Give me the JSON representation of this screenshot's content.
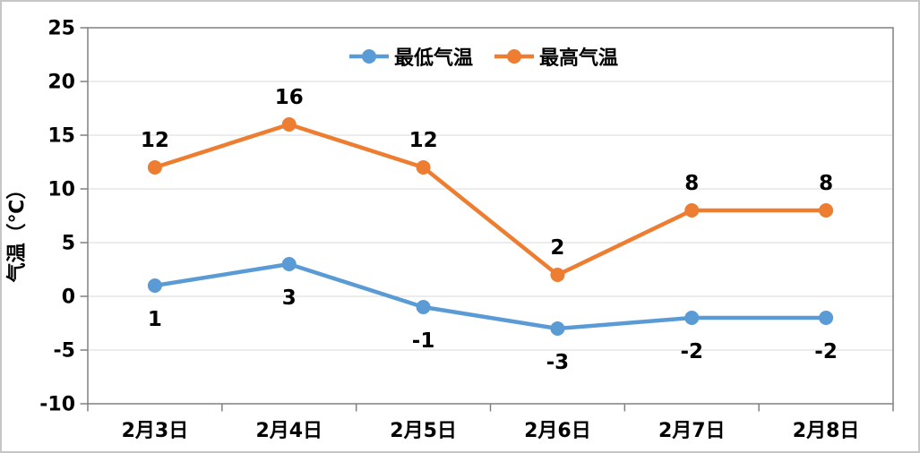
{
  "chart_data": {
    "type": "line",
    "title": "",
    "xlabel": "",
    "ylabel": "气温（℃）",
    "categories": [
      "2月3日",
      "2月4日",
      "2月5日",
      "2月6日",
      "2月7日",
      "2月8日"
    ],
    "series": [
      {
        "name": "最低气温",
        "color": "#5B9BD5",
        "values": [
          1,
          3,
          -1,
          -3,
          -2,
          -2
        ],
        "label_position": "below"
      },
      {
        "name": "最高气温",
        "color": "#ED7D31",
        "values": [
          12,
          16,
          12,
          2,
          8,
          8
        ],
        "label_position": "above"
      }
    ],
    "ylim": [
      -10,
      25
    ],
    "yticks": [
      25,
      20,
      15,
      10,
      5,
      0,
      -5,
      -10
    ],
    "grid": true,
    "legend_position": "top-center"
  },
  "colors": {
    "grid_line": "#D9D9D9",
    "axis_line": "#808080",
    "text": "#000000",
    "frame_border": "#C6C6C6",
    "background": "#FFFFFF"
  }
}
